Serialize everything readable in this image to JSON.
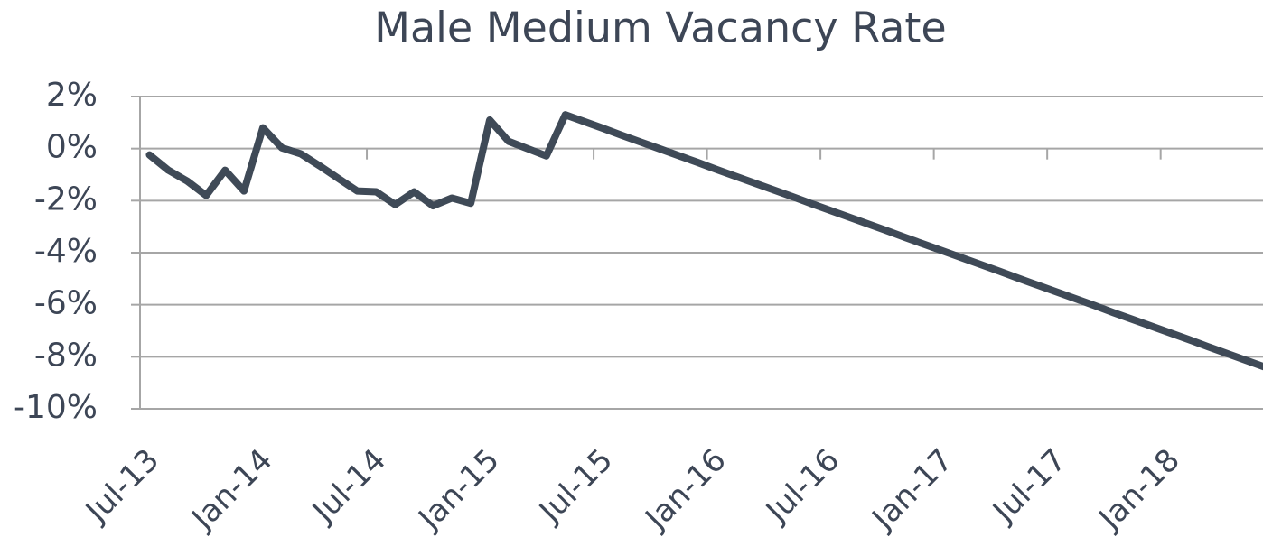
{
  "chart_data": {
    "type": "line",
    "title": "Male Medium Vacancy Rate",
    "categories": [
      "Jul-13",
      null,
      null,
      null,
      null,
      null,
      "Jan-14",
      null,
      null,
      null,
      null,
      null,
      "Jul-14",
      null,
      null,
      null,
      null,
      null,
      "Jan-15",
      null,
      null,
      null,
      null,
      null,
      "Jul-15",
      null,
      null,
      null,
      null,
      null,
      "Jan-16",
      null,
      null,
      null,
      null,
      null,
      "Jul-16",
      null,
      null,
      null,
      null,
      null,
      "Jan-17",
      null,
      null,
      null,
      null,
      null,
      "Jul-17",
      null,
      null,
      null,
      null,
      null,
      "Jan-18",
      null,
      null,
      null,
      null,
      null
    ],
    "series": [
      {
        "name": "Male Medium Vacancy Rate",
        "color": "#3f4a57",
        "values": [
          -0.24,
          -0.83,
          -1.25,
          -1.8,
          -0.83,
          -1.63,
          0.8,
          0.03,
          -0.2,
          -0.66,
          -1.15,
          -1.63,
          -1.66,
          -2.15,
          -1.66,
          -2.2,
          -1.9,
          -2.1,
          1.1,
          0.28,
          0,
          -0.28,
          1.3,
          1.04,
          0.78,
          0.51,
          0.25,
          -0.01,
          -0.27,
          -0.53,
          -0.8,
          -1.06,
          -1.32,
          -1.58,
          -1.84,
          -2.11,
          -2.37,
          -2.63,
          -2.89,
          -3.15,
          -3.42,
          -3.68,
          -3.94,
          -4.2,
          -4.46,
          -4.72,
          -4.99,
          -5.25,
          -5.51,
          -5.77,
          -6.03,
          -6.3,
          -6.56,
          -6.82,
          -7.08,
          -7.34,
          -7.61,
          -7.87,
          -8.13,
          -8.39
        ]
      }
    ],
    "ylim": [
      -10,
      2
    ],
    "yticks": [
      {
        "value": -10,
        "label": "-10%"
      },
      {
        "value": -8,
        "label": "-8%"
      },
      {
        "value": -6,
        "label": "-6%"
      },
      {
        "value": -4,
        "label": "-4%"
      },
      {
        "value": -2,
        "label": "-2%"
      },
      {
        "value": 0,
        "label": "0%"
      },
      {
        "value": 2,
        "label": "2%"
      }
    ],
    "grid": true
  }
}
